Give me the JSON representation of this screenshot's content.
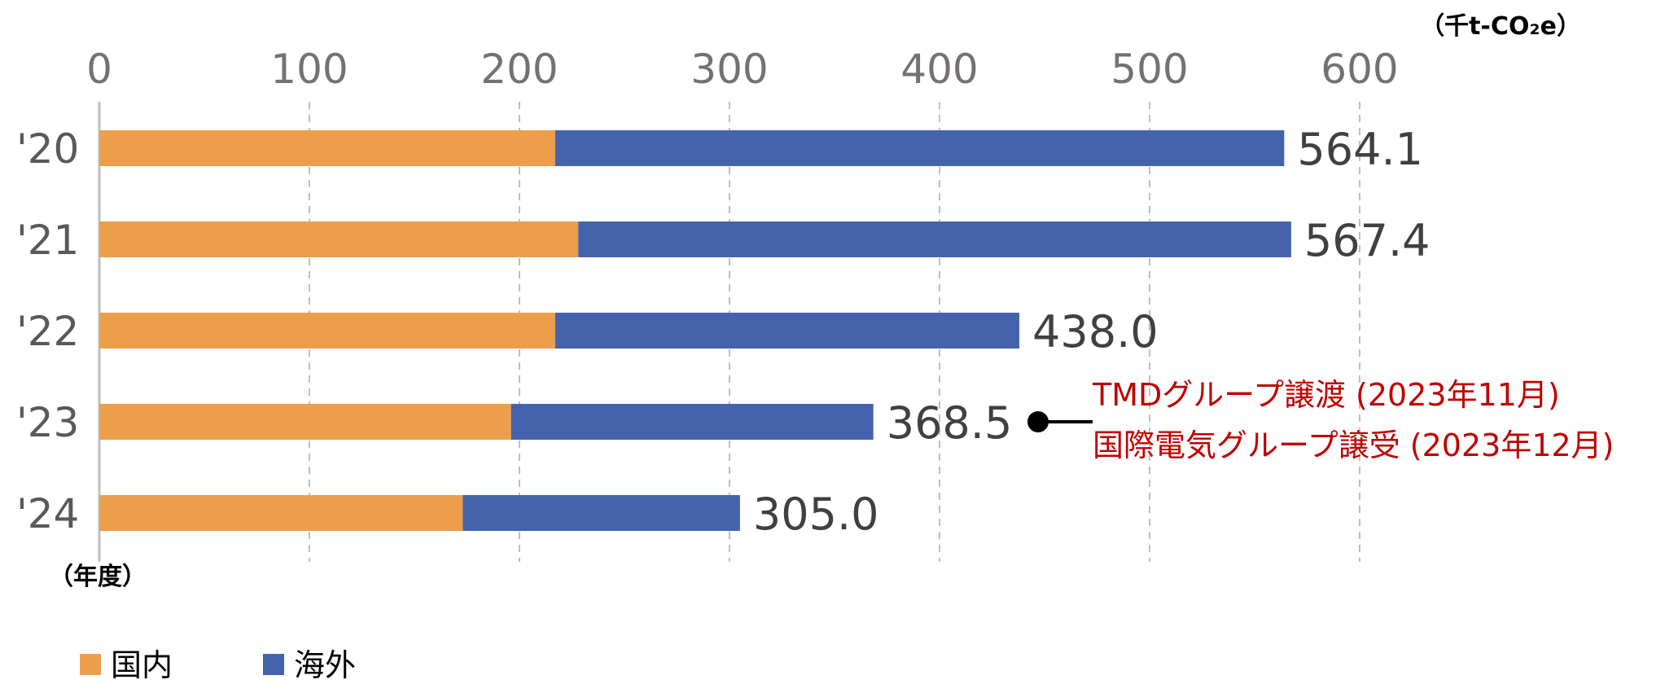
{
  "chart_data": {
    "type": "bar",
    "orientation": "horizontal",
    "stacked": true,
    "unit_label": "（千t-CO₂e）",
    "category_axis_label": "（年度）",
    "categories": [
      "'20",
      "'21",
      "'22",
      "'23",
      "'24"
    ],
    "series": [
      {
        "name": "国内",
        "color": "#ED9E4B",
        "values": [
          217,
          228,
          217,
          196,
          173
        ]
      },
      {
        "name": "海外",
        "color": "#4563AC",
        "values": [
          347.1,
          339.4,
          221.0,
          172.5,
          132.0
        ]
      }
    ],
    "totals": [
      "564.1",
      "567.4",
      "438.0",
      "368.5",
      "305.0"
    ],
    "x_ticks": [
      "0",
      "100",
      "200",
      "300",
      "400",
      "500",
      "600"
    ],
    "xlim": [
      0,
      600
    ],
    "grid": "vertical dashed",
    "legend_position": "bottom-left",
    "annotation": {
      "category": "'23",
      "lines": [
        "TMDグループ譲渡 (2023年11月)",
        "国際電気グループ譲受 (2023年12月)"
      ],
      "color": "#C00000"
    }
  }
}
